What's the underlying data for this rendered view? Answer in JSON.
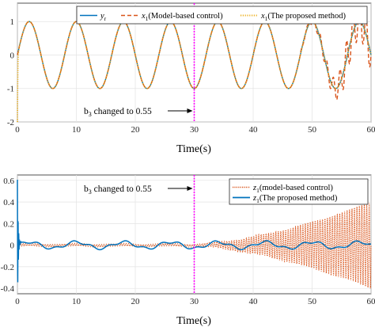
{
  "chart_data": [
    {
      "type": "line",
      "xlabel": "Time(s)",
      "ylabel": "",
      "xlim": [
        0,
        60
      ],
      "ylim": [
        -2,
        1.55
      ],
      "xticks": [
        0,
        10,
        20,
        30,
        40,
        50,
        60
      ],
      "yticks": [
        -2,
        -1,
        0,
        1
      ],
      "grid": true,
      "legend_position": "top",
      "legend": [
        {
          "sym": "y",
          "sub": "r",
          "text": ""
        },
        {
          "sym": "x",
          "sub": "1",
          "text": "(Model-based control)"
        },
        {
          "sym": "x",
          "sub": "1",
          "text": "(The proposed method)"
        }
      ],
      "series": [
        {
          "name": "y_r",
          "color": "#0072BD",
          "style": "solid",
          "description": "reference sine wave y_r = sin(0.785 t)",
          "period_s": 8.0,
          "amplitude": 1.0
        },
        {
          "name": "x1 (Model-based control)",
          "color": "#D95319",
          "style": "dashed",
          "tracks_reference_until_s": 48,
          "growing_oscillation_after_s": 48,
          "min_value_near_end": -1.35,
          "max_value_near_end": 1.3
        },
        {
          "name": "x1 (The proposed method)",
          "color": "#EDB120",
          "style": "dotted",
          "start_value": -2.0,
          "tracks_reference": true
        }
      ],
      "annotation": {
        "text_b": "b",
        "text_sub": "3",
        "text_rest": " changed to 0.55",
        "at_x": 30,
        "vline_color": "#FF00FF"
      }
    },
    {
      "type": "line",
      "xlabel": "Time(s)",
      "ylabel": "",
      "xlim": [
        0,
        60
      ],
      "ylim": [
        -0.45,
        0.65
      ],
      "xticks": [
        0,
        10,
        20,
        30,
        40,
        50,
        60
      ],
      "yticks": [
        -0.4,
        -0.2,
        0,
        0.2,
        0.4,
        0.6
      ],
      "grid": true,
      "legend_position": "top-right",
      "legend": [
        {
          "sym": "z",
          "sub": "1",
          "text": "(model-based control)"
        },
        {
          "sym": "z",
          "sub": "1",
          "text": "(The proposed method)"
        }
      ],
      "series": [
        {
          "name": "z1 (model-based control)",
          "color": "#D95319",
          "style": "dotted",
          "small_until_s": 30,
          "growing_oscillation_after_s": 30,
          "envelope_at_60s": 0.4
        },
        {
          "name": "z1 (The proposed method)",
          "color": "#0072BD",
          "style": "solid",
          "initial_spike": 0.6,
          "steady_ripple": 0.03
        }
      ],
      "annotation": {
        "text_b": "b",
        "text_sub": "3",
        "text_rest": " changed to 0.55",
        "at_x": 30,
        "vline_color": "#FF00FF"
      }
    }
  ]
}
